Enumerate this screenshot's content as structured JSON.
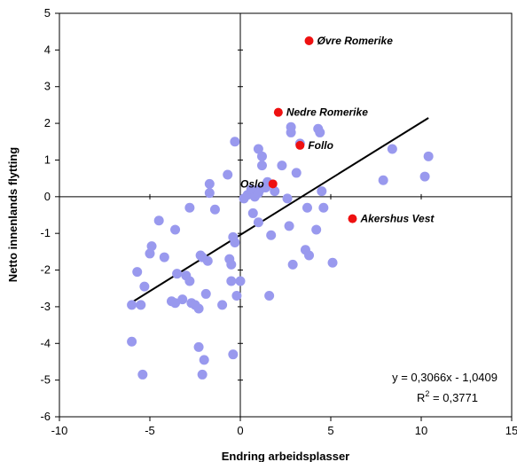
{
  "chart_data": {
    "type": "scatter",
    "title": "",
    "xlabel": "Endring arbeidsplasser",
    "ylabel": "Netto innenlands flytting",
    "xlim": [
      -10,
      15
    ],
    "ylim": [
      -6,
      5
    ],
    "x_ticks": [
      "-10",
      "-5",
      "0",
      "5",
      "10",
      "15"
    ],
    "y_ticks": [
      "5",
      "4",
      "3",
      "2",
      "1",
      "0",
      "-1",
      "-2",
      "-3",
      "-4",
      "-5",
      "-6"
    ],
    "x_tick_values": [
      -10,
      -5,
      0,
      5,
      10,
      15
    ],
    "y_tick_values": [
      5,
      4,
      3,
      2,
      1,
      0,
      -1,
      -2,
      -3,
      -4,
      -5,
      -6
    ],
    "grid": false,
    "colors": {
      "points": "#9999ee",
      "highlight": "#ee1111",
      "line": "#000000"
    },
    "series": [
      {
        "points": [
          [
            -6.0,
            -2.95
          ],
          [
            -5.7,
            -2.05
          ],
          [
            -5.5,
            -2.95
          ],
          [
            -5.3,
            -2.45
          ],
          [
            -5.0,
            -1.55
          ],
          [
            -4.9,
            -1.35
          ],
          [
            -4.5,
            -0.65
          ],
          [
            -4.2,
            -1.65
          ],
          [
            -3.8,
            -2.85
          ],
          [
            -3.6,
            -0.9
          ],
          [
            -3.6,
            -2.9
          ],
          [
            -3.5,
            -2.1
          ],
          [
            -3.2,
            -2.8
          ],
          [
            -3.0,
            -2.15
          ],
          [
            -2.8,
            -2.3
          ],
          [
            -2.8,
            -0.3
          ],
          [
            -2.7,
            -2.9
          ],
          [
            -2.5,
            -2.95
          ],
          [
            -2.3,
            -3.05
          ],
          [
            -2.2,
            -1.6
          ],
          [
            -2.1,
            -1.65
          ],
          [
            -1.9,
            -2.65
          ],
          [
            -1.8,
            -1.75
          ],
          [
            -1.7,
            0.35
          ],
          [
            -1.7,
            0.1
          ],
          [
            -1.4,
            -0.35
          ],
          [
            -1.0,
            -2.95
          ],
          [
            -0.7,
            0.6
          ],
          [
            -0.6,
            -1.7
          ],
          [
            -0.5,
            -1.85
          ],
          [
            -0.5,
            -2.3
          ],
          [
            -0.4,
            -1.1
          ],
          [
            -0.3,
            -1.25
          ],
          [
            -0.3,
            1.5
          ],
          [
            -0.2,
            -2.7
          ],
          [
            0.0,
            -2.3
          ],
          [
            0.2,
            -0.05
          ],
          [
            0.4,
            0.05
          ],
          [
            0.6,
            0.2
          ],
          [
            0.7,
            -0.45
          ],
          [
            0.8,
            0.0
          ],
          [
            1.0,
            1.3
          ],
          [
            1.0,
            -0.7
          ],
          [
            1.1,
            0.2
          ],
          [
            1.2,
            0.85
          ],
          [
            1.2,
            1.1
          ],
          [
            1.4,
            0.25
          ],
          [
            1.5,
            0.4
          ],
          [
            1.6,
            -2.7
          ],
          [
            1.7,
            -1.05
          ],
          [
            1.9,
            0.15
          ],
          [
            1.0,
            0.1
          ],
          [
            2.3,
            0.85
          ],
          [
            2.6,
            -0.05
          ],
          [
            2.7,
            -0.8
          ],
          [
            2.8,
            1.75
          ],
          [
            2.8,
            1.9
          ],
          [
            2.9,
            -1.85
          ],
          [
            3.1,
            0.65
          ],
          [
            3.3,
            1.45
          ],
          [
            3.6,
            -1.45
          ],
          [
            3.7,
            -0.3
          ],
          [
            3.8,
            -1.6
          ],
          [
            4.2,
            -0.9
          ],
          [
            4.3,
            1.85
          ],
          [
            4.4,
            1.75
          ],
          [
            4.5,
            0.15
          ],
          [
            4.6,
            -0.3
          ],
          [
            5.1,
            -1.8
          ],
          [
            7.9,
            0.45
          ],
          [
            8.4,
            1.3
          ],
          [
            10.2,
            0.55
          ],
          [
            10.4,
            1.1
          ],
          [
            -6.0,
            -3.95
          ],
          [
            -5.4,
            -4.85
          ],
          [
            -2.3,
            -4.1
          ],
          [
            -2.0,
            -4.45
          ],
          [
            -2.1,
            -4.85
          ],
          [
            -0.4,
            -4.3
          ]
        ]
      },
      {
        "points": [
          [
            3.8,
            4.25,
            "Øvre Romerike"
          ],
          [
            2.1,
            2.3,
            "Nedre Romerike"
          ],
          [
            3.3,
            1.4,
            "Follo"
          ],
          [
            1.8,
            0.35,
            "Oslo"
          ],
          [
            6.2,
            -0.6,
            "Akershus Vest"
          ]
        ]
      }
    ],
    "trendline": {
      "slope": 0.3066,
      "intercept": -1.0409,
      "x_range": [
        -6.1,
        10.4
      ]
    },
    "equation_text": "y = 0,3066x - 1,0409",
    "r2_label": "R",
    "r2_sup": "2",
    "r2_value": " = 0,3771"
  }
}
